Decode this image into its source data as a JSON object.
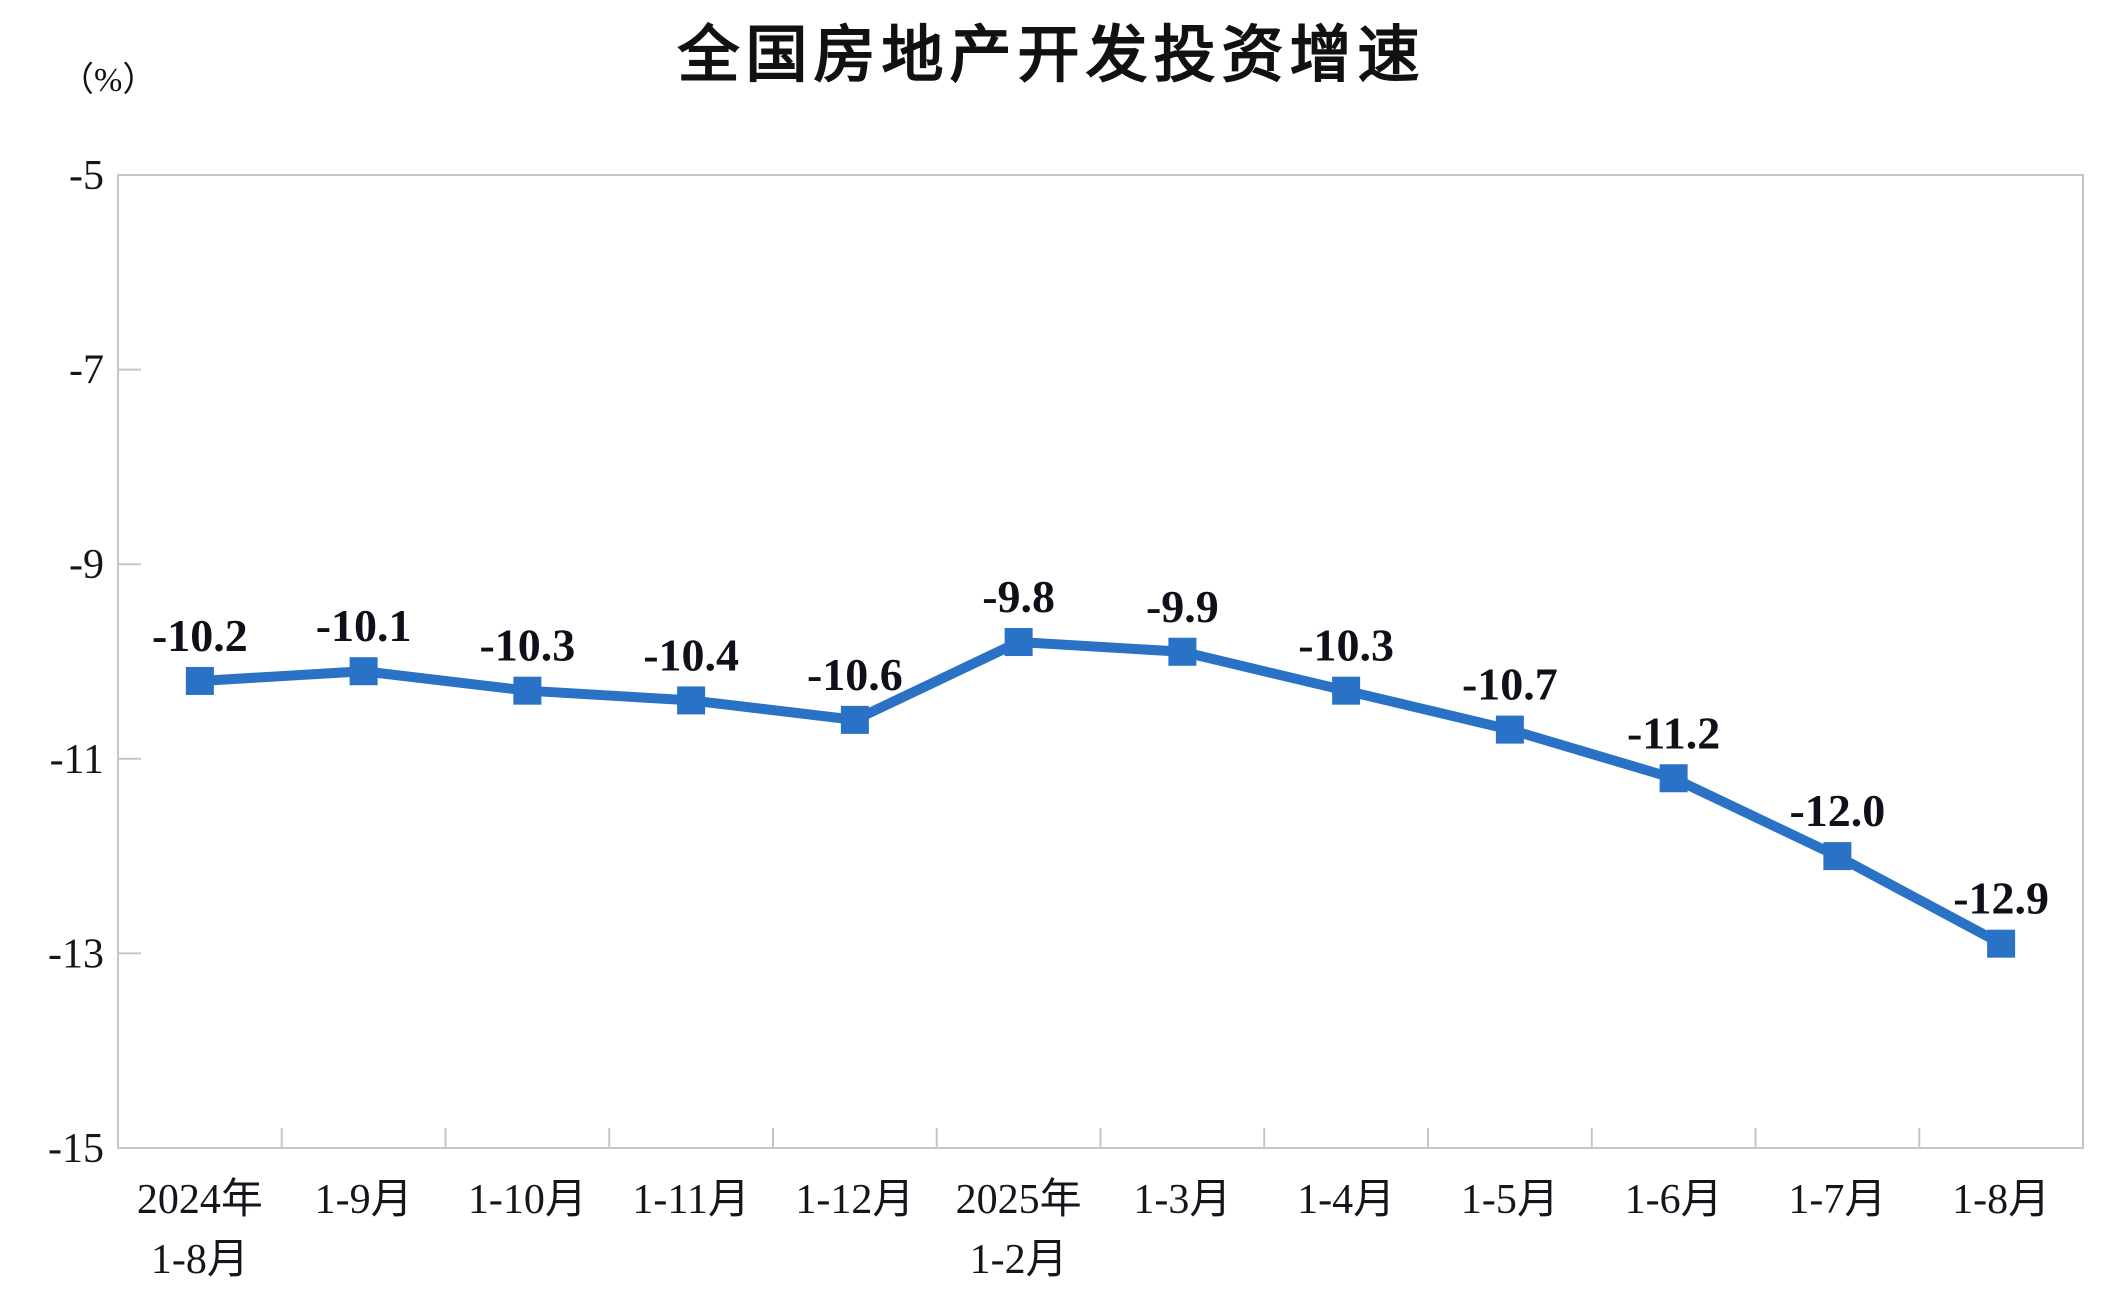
{
  "chart_data": {
    "type": "line",
    "title": "全国房地产开发投资增速",
    "unit_label": "（%）",
    "categories": [
      {
        "line1": "2024年",
        "line2": "1-8月"
      },
      {
        "line1": "1-9月"
      },
      {
        "line1": "1-10月"
      },
      {
        "line1": "1-11月"
      },
      {
        "line1": "1-12月"
      },
      {
        "line1": "2025年",
        "line2": "1-2月"
      },
      {
        "line1": "1-3月"
      },
      {
        "line1": "1-4月"
      },
      {
        "line1": "1-5月"
      },
      {
        "line1": "1-6月"
      },
      {
        "line1": "1-7月"
      },
      {
        "line1": "1-8月"
      }
    ],
    "series": [
      {
        "name": "全国房地产开发投资增速",
        "values": [
          -10.2,
          -10.1,
          -10.3,
          -10.4,
          -10.6,
          -9.8,
          -9.9,
          -10.3,
          -10.7,
          -11.2,
          -12.0,
          -12.9
        ],
        "data_labels": [
          "-10.2",
          "-10.1",
          "-10.3",
          "-10.4",
          "-10.6",
          "-9.8",
          "-9.9",
          "-10.3",
          "-10.7",
          "-11.2",
          "-12.0",
          "-12.9"
        ]
      }
    ],
    "ylim": [
      -15,
      -5
    ],
    "yticks": [
      -5,
      -7,
      -9,
      -11,
      -13,
      -15
    ],
    "ytick_labels": [
      "-5",
      "-7",
      "-9",
      "-11",
      "-13",
      "-15"
    ],
    "grid": false,
    "legend_position": "none",
    "marker": "square",
    "colors": {
      "series": "#2A72C6",
      "frame": "#C6C6C6",
      "text": "#111111",
      "background": "#FFFFFF"
    }
  }
}
